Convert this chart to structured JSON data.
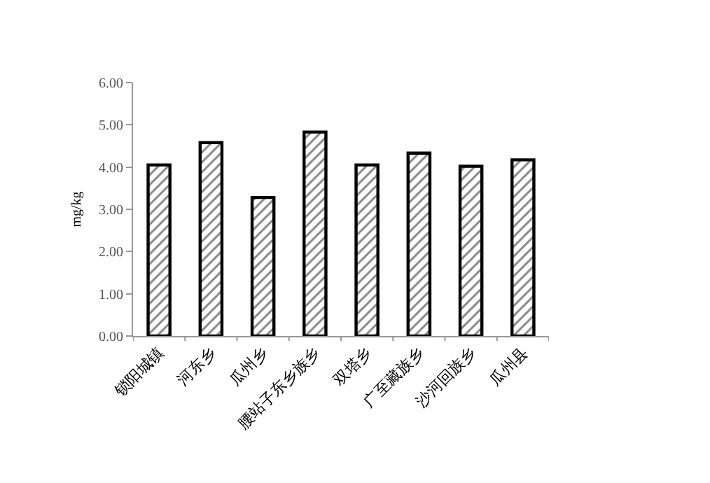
{
  "chart_data": {
    "type": "bar",
    "ylabel": "mg/kg",
    "categories": [
      "锁阳城镇",
      "河东乡",
      "瓜州乡",
      "腰站子东乡族乡",
      "双塔乡",
      "广至藏族乡",
      "沙河回族乡",
      "瓜州县"
    ],
    "values": [
      4.05,
      4.58,
      3.28,
      4.83,
      4.05,
      4.33,
      4.02,
      4.17
    ],
    "color": "#000000",
    "ylim": [
      0,
      6
    ],
    "yticks": [
      {
        "value": 0,
        "label": "0.00"
      },
      {
        "value": 1,
        "label": "1.00"
      },
      {
        "value": 2,
        "label": "2.00"
      },
      {
        "value": 3,
        "label": "3.00"
      },
      {
        "value": 4,
        "label": "4.00"
      },
      {
        "value": 5,
        "label": "5.00"
      },
      {
        "value": 6,
        "label": "6.00"
      }
    ],
    "grid": false,
    "legend": false
  }
}
